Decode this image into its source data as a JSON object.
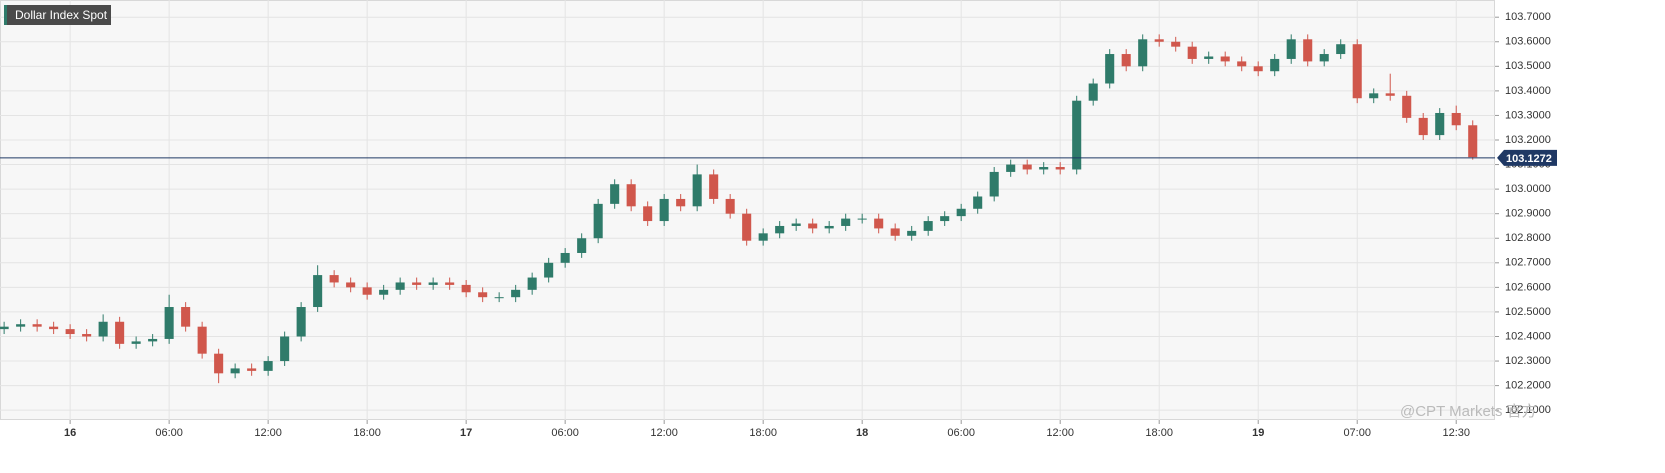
{
  "chart_data": {
    "type": "candlestick",
    "title": "Dollar Index Spot",
    "x": [
      -4,
      -3,
      -2,
      -1,
      0,
      1,
      2,
      3,
      4,
      5,
      6,
      7,
      8,
      9,
      10,
      11,
      12,
      13,
      14,
      15,
      16,
      17,
      18,
      19,
      20,
      21,
      22,
      23,
      24,
      25,
      26,
      27,
      28,
      29,
      30,
      31,
      32,
      33,
      34,
      35,
      36,
      37,
      38,
      39,
      40,
      41,
      42,
      43,
      44,
      45,
      46,
      47,
      48,
      49,
      50,
      51,
      52,
      53,
      54,
      55,
      56,
      57,
      58,
      59,
      60,
      61,
      62,
      63,
      64,
      65,
      66,
      67,
      68,
      69,
      70,
      71,
      72,
      73,
      74,
      75,
      76,
      77,
      78,
      79,
      80,
      81,
      82,
      83,
      84,
      85
    ],
    "open": [
      102.43,
      102.44,
      102.45,
      102.44,
      102.43,
      102.41,
      102.4,
      102.46,
      102.37,
      102.38,
      102.39,
      102.52,
      102.44,
      102.33,
      102.25,
      102.27,
      102.26,
      102.3,
      102.4,
      102.52,
      102.65,
      102.62,
      102.6,
      102.57,
      102.59,
      102.62,
      102.61,
      102.62,
      102.61,
      102.58,
      102.56,
      102.56,
      102.59,
      102.64,
      102.7,
      102.74,
      102.8,
      102.94,
      103.02,
      102.93,
      102.87,
      102.96,
      102.93,
      103.06,
      102.96,
      102.9,
      102.79,
      102.82,
      102.85,
      102.86,
      102.84,
      102.85,
      102.88,
      102.88,
      102.84,
      102.81,
      102.83,
      102.87,
      102.89,
      102.92,
      102.97,
      103.07,
      103.1,
      103.08,
      103.09,
      103.08,
      103.36,
      103.43,
      103.55,
      103.5,
      103.61,
      103.6,
      103.58,
      103.53,
      103.54,
      103.52,
      103.5,
      103.48,
      103.53,
      103.61,
      103.52,
      103.55,
      103.59,
      103.37,
      103.39,
      103.38,
      103.29,
      103.22,
      103.31,
      103.26
    ],
    "high": [
      102.46,
      102.47,
      102.47,
      102.46,
      102.45,
      102.43,
      102.49,
      102.48,
      102.4,
      102.41,
      102.57,
      102.54,
      102.46,
      102.35,
      102.29,
      102.29,
      102.32,
      102.42,
      102.54,
      102.69,
      102.67,
      102.64,
      102.62,
      102.61,
      102.64,
      102.64,
      102.64,
      102.64,
      102.63,
      102.6,
      102.58,
      102.61,
      102.66,
      102.72,
      102.76,
      102.82,
      102.96,
      103.04,
      103.04,
      102.95,
      102.98,
      102.98,
      103.1,
      103.08,
      102.98,
      102.92,
      102.84,
      102.87,
      102.88,
      102.88,
      102.87,
      102.9,
      102.9,
      102.9,
      102.86,
      102.85,
      102.89,
      102.91,
      102.94,
      102.99,
      103.09,
      103.12,
      103.12,
      103.11,
      103.11,
      103.38,
      103.45,
      103.57,
      103.57,
      103.63,
      103.63,
      103.62,
      103.6,
      103.56,
      103.56,
      103.54,
      103.52,
      103.55,
      103.63,
      103.63,
      103.57,
      103.61,
      103.61,
      103.41,
      103.47,
      103.4,
      103.31,
      103.33,
      103.34,
      103.28
    ],
    "low": [
      102.41,
      102.42,
      102.42,
      102.41,
      102.39,
      102.38,
      102.38,
      102.35,
      102.35,
      102.36,
      102.37,
      102.42,
      102.31,
      102.21,
      102.23,
      102.24,
      102.24,
      102.28,
      102.38,
      102.5,
      102.6,
      102.58,
      102.55,
      102.55,
      102.57,
      102.59,
      102.59,
      102.59,
      102.56,
      102.54,
      102.54,
      102.54,
      102.57,
      102.62,
      102.68,
      102.72,
      102.78,
      102.92,
      102.91,
      102.85,
      102.85,
      102.91,
      102.91,
      102.94,
      102.88,
      102.77,
      102.77,
      102.8,
      102.83,
      102.82,
      102.82,
      102.83,
      102.86,
      102.82,
      102.79,
      102.79,
      102.81,
      102.85,
      102.87,
      102.9,
      102.95,
      103.05,
      103.06,
      103.06,
      103.06,
      103.06,
      103.34,
      103.41,
      103.48,
      103.48,
      103.58,
      103.56,
      103.51,
      103.51,
      103.5,
      103.48,
      103.46,
      103.46,
      103.51,
      103.5,
      103.5,
      103.53,
      103.35,
      103.35,
      103.36,
      103.27,
      103.2,
      103.2,
      103.24,
      103.12
    ],
    "close": [
      102.44,
      102.45,
      102.44,
      102.43,
      102.41,
      102.4,
      102.46,
      102.37,
      102.38,
      102.39,
      102.52,
      102.44,
      102.33,
      102.25,
      102.27,
      102.26,
      102.3,
      102.4,
      102.52,
      102.65,
      102.62,
      102.6,
      102.57,
      102.59,
      102.62,
      102.61,
      102.62,
      102.61,
      102.58,
      102.56,
      102.56,
      102.59,
      102.64,
      102.7,
      102.74,
      102.8,
      102.94,
      103.02,
      102.93,
      102.87,
      102.96,
      102.93,
      103.06,
      102.96,
      102.9,
      102.79,
      102.82,
      102.85,
      102.86,
      102.84,
      102.85,
      102.88,
      102.88,
      102.84,
      102.81,
      102.83,
      102.87,
      102.89,
      102.92,
      102.97,
      103.07,
      103.1,
      103.08,
      103.09,
      103.08,
      103.36,
      103.43,
      103.55,
      103.5,
      103.61,
      103.6,
      103.58,
      103.53,
      103.54,
      103.52,
      103.5,
      103.48,
      103.53,
      103.61,
      103.52,
      103.55,
      103.59,
      103.37,
      103.39,
      103.38,
      103.29,
      103.22,
      103.31,
      103.26,
      103.13
    ],
    "up_color": "#2f7b6a",
    "down_color": "#d0574c",
    "current_price": 103.1272,
    "current_price_color": "#1f3864",
    "xlim": [
      -4.25,
      86.35
    ],
    "xticks": [
      {
        "value": 0,
        "label": "16"
      },
      {
        "value": 6,
        "label": "06:00"
      },
      {
        "value": 12,
        "label": "12:00"
      },
      {
        "value": 18,
        "label": "18:00"
      },
      {
        "value": 24,
        "label": "17"
      },
      {
        "value": 30,
        "label": "06:00"
      },
      {
        "value": 36,
        "label": "12:00"
      },
      {
        "value": 42,
        "label": "18:00"
      },
      {
        "value": 48,
        "label": "18"
      },
      {
        "value": 54,
        "label": "06:00"
      },
      {
        "value": 60,
        "label": "12:00"
      },
      {
        "value": 66,
        "label": "18:00"
      },
      {
        "value": 72,
        "label": "19"
      },
      {
        "value": 78,
        "label": "07:00"
      },
      {
        "value": 84,
        "label": "12:30"
      }
    ],
    "ylim": [
      102.06,
      103.77
    ],
    "yticks": [
      {
        "value": 102.1,
        "label": "102.1000"
      },
      {
        "value": 102.2,
        "label": "102.2000"
      },
      {
        "value": 102.3,
        "label": "102.3000"
      },
      {
        "value": 102.4,
        "label": "102.4000"
      },
      {
        "value": 102.5,
        "label": "102.5000"
      },
      {
        "value": 102.6,
        "label": "102.6000"
      },
      {
        "value": 102.7,
        "label": "102.7000"
      },
      {
        "value": 102.8,
        "label": "102.8000"
      },
      {
        "value": 102.9,
        "label": "102.9000"
      },
      {
        "value": 103.0,
        "label": "103.0000"
      },
      {
        "value": 103.1,
        "label": "103.1000"
      },
      {
        "value": 103.2,
        "label": "103.2000"
      },
      {
        "value": 103.3,
        "label": "103.3000"
      },
      {
        "value": 103.4,
        "label": "103.4000"
      },
      {
        "value": 103.5,
        "label": "103.5000"
      },
      {
        "value": 103.6,
        "label": "103.6000"
      },
      {
        "value": 103.7,
        "label": "103.7000"
      }
    ],
    "grid": true,
    "watermark": "@CPT Markets 官方"
  }
}
